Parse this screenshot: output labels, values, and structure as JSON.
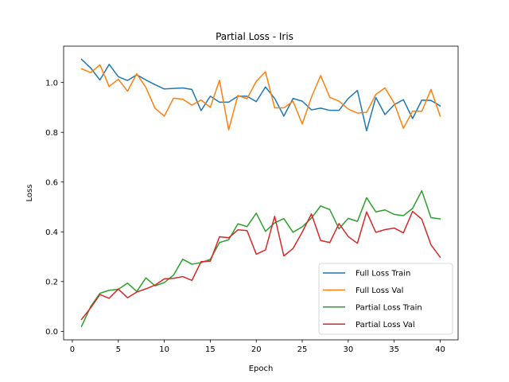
{
  "chart_data": {
    "type": "line",
    "title": "Partial Loss - Iris",
    "xlabel": "Epoch",
    "ylabel": "Loss",
    "xlim": [
      -0.95,
      41.95
    ],
    "ylim": [
      -0.034,
      1.146
    ],
    "xticks": [
      0,
      5,
      10,
      15,
      20,
      25,
      30,
      35,
      40
    ],
    "yticks": [
      0.0,
      0.2,
      0.4,
      0.6,
      0.8,
      1.0
    ],
    "ytick_labels": [
      "0.0",
      "0.2",
      "0.4",
      "0.6",
      "0.8",
      "1.0"
    ],
    "grid": false,
    "legend_position": "lower-right",
    "x": [
      1,
      2,
      3,
      4,
      5,
      6,
      7,
      8,
      9,
      10,
      11,
      12,
      13,
      14,
      15,
      16,
      17,
      18,
      19,
      20,
      21,
      22,
      23,
      24,
      25,
      26,
      27,
      28,
      29,
      30,
      31,
      32,
      33,
      34,
      35,
      36,
      37,
      38,
      39,
      40
    ],
    "series": [
      {
        "name": "Full Loss Train",
        "color": "#1f77b4",
        "values": [
          1.093,
          1.058,
          1.01,
          1.073,
          1.023,
          1.008,
          1.031,
          1.01,
          0.991,
          0.974,
          0.976,
          0.978,
          0.972,
          0.887,
          0.945,
          0.921,
          0.921,
          0.945,
          0.945,
          0.923,
          0.982,
          0.936,
          0.865,
          0.936,
          0.925,
          0.89,
          0.897,
          0.888,
          0.888,
          0.936,
          0.968,
          0.806,
          0.94,
          0.871,
          0.911,
          0.931,
          0.855,
          0.929,
          0.928,
          0.906
        ]
      },
      {
        "name": "Full Loss Val",
        "color": "#ff7f0e",
        "values": [
          1.055,
          1.04,
          1.071,
          0.984,
          1.013,
          0.965,
          1.035,
          0.98,
          0.896,
          0.865,
          0.937,
          0.933,
          0.909,
          0.93,
          0.9,
          1.009,
          0.81,
          0.948,
          0.935,
          1.005,
          1.043,
          0.898,
          0.898,
          0.925,
          0.833,
          0.941,
          1.028,
          0.94,
          0.925,
          0.893,
          0.877,
          0.88,
          0.952,
          0.978,
          0.917,
          0.816,
          0.885,
          0.884,
          0.972,
          0.865
        ]
      },
      {
        "name": "Partial Loss Train",
        "color": "#2ca02c",
        "values": [
          0.02,
          0.1,
          0.153,
          0.165,
          0.169,
          0.194,
          0.16,
          0.215,
          0.183,
          0.196,
          0.226,
          0.29,
          0.27,
          0.276,
          0.289,
          0.357,
          0.368,
          0.432,
          0.421,
          0.475,
          0.402,
          0.436,
          0.453,
          0.398,
          0.42,
          0.455,
          0.504,
          0.489,
          0.412,
          0.454,
          0.442,
          0.537,
          0.48,
          0.488,
          0.47,
          0.465,
          0.494,
          0.565,
          0.457,
          0.452
        ]
      },
      {
        "name": "Partial Loss Val",
        "color": "#d62728",
        "values": [
          0.048,
          0.095,
          0.148,
          0.133,
          0.17,
          0.135,
          0.158,
          0.171,
          0.186,
          0.211,
          0.213,
          0.22,
          0.205,
          0.28,
          0.282,
          0.38,
          0.376,
          0.408,
          0.405,
          0.31,
          0.327,
          0.462,
          0.303,
          0.333,
          0.399,
          0.472,
          0.365,
          0.357,
          0.433,
          0.381,
          0.354,
          0.48,
          0.398,
          0.409,
          0.415,
          0.396,
          0.482,
          0.451,
          0.348,
          0.298
        ]
      }
    ]
  }
}
